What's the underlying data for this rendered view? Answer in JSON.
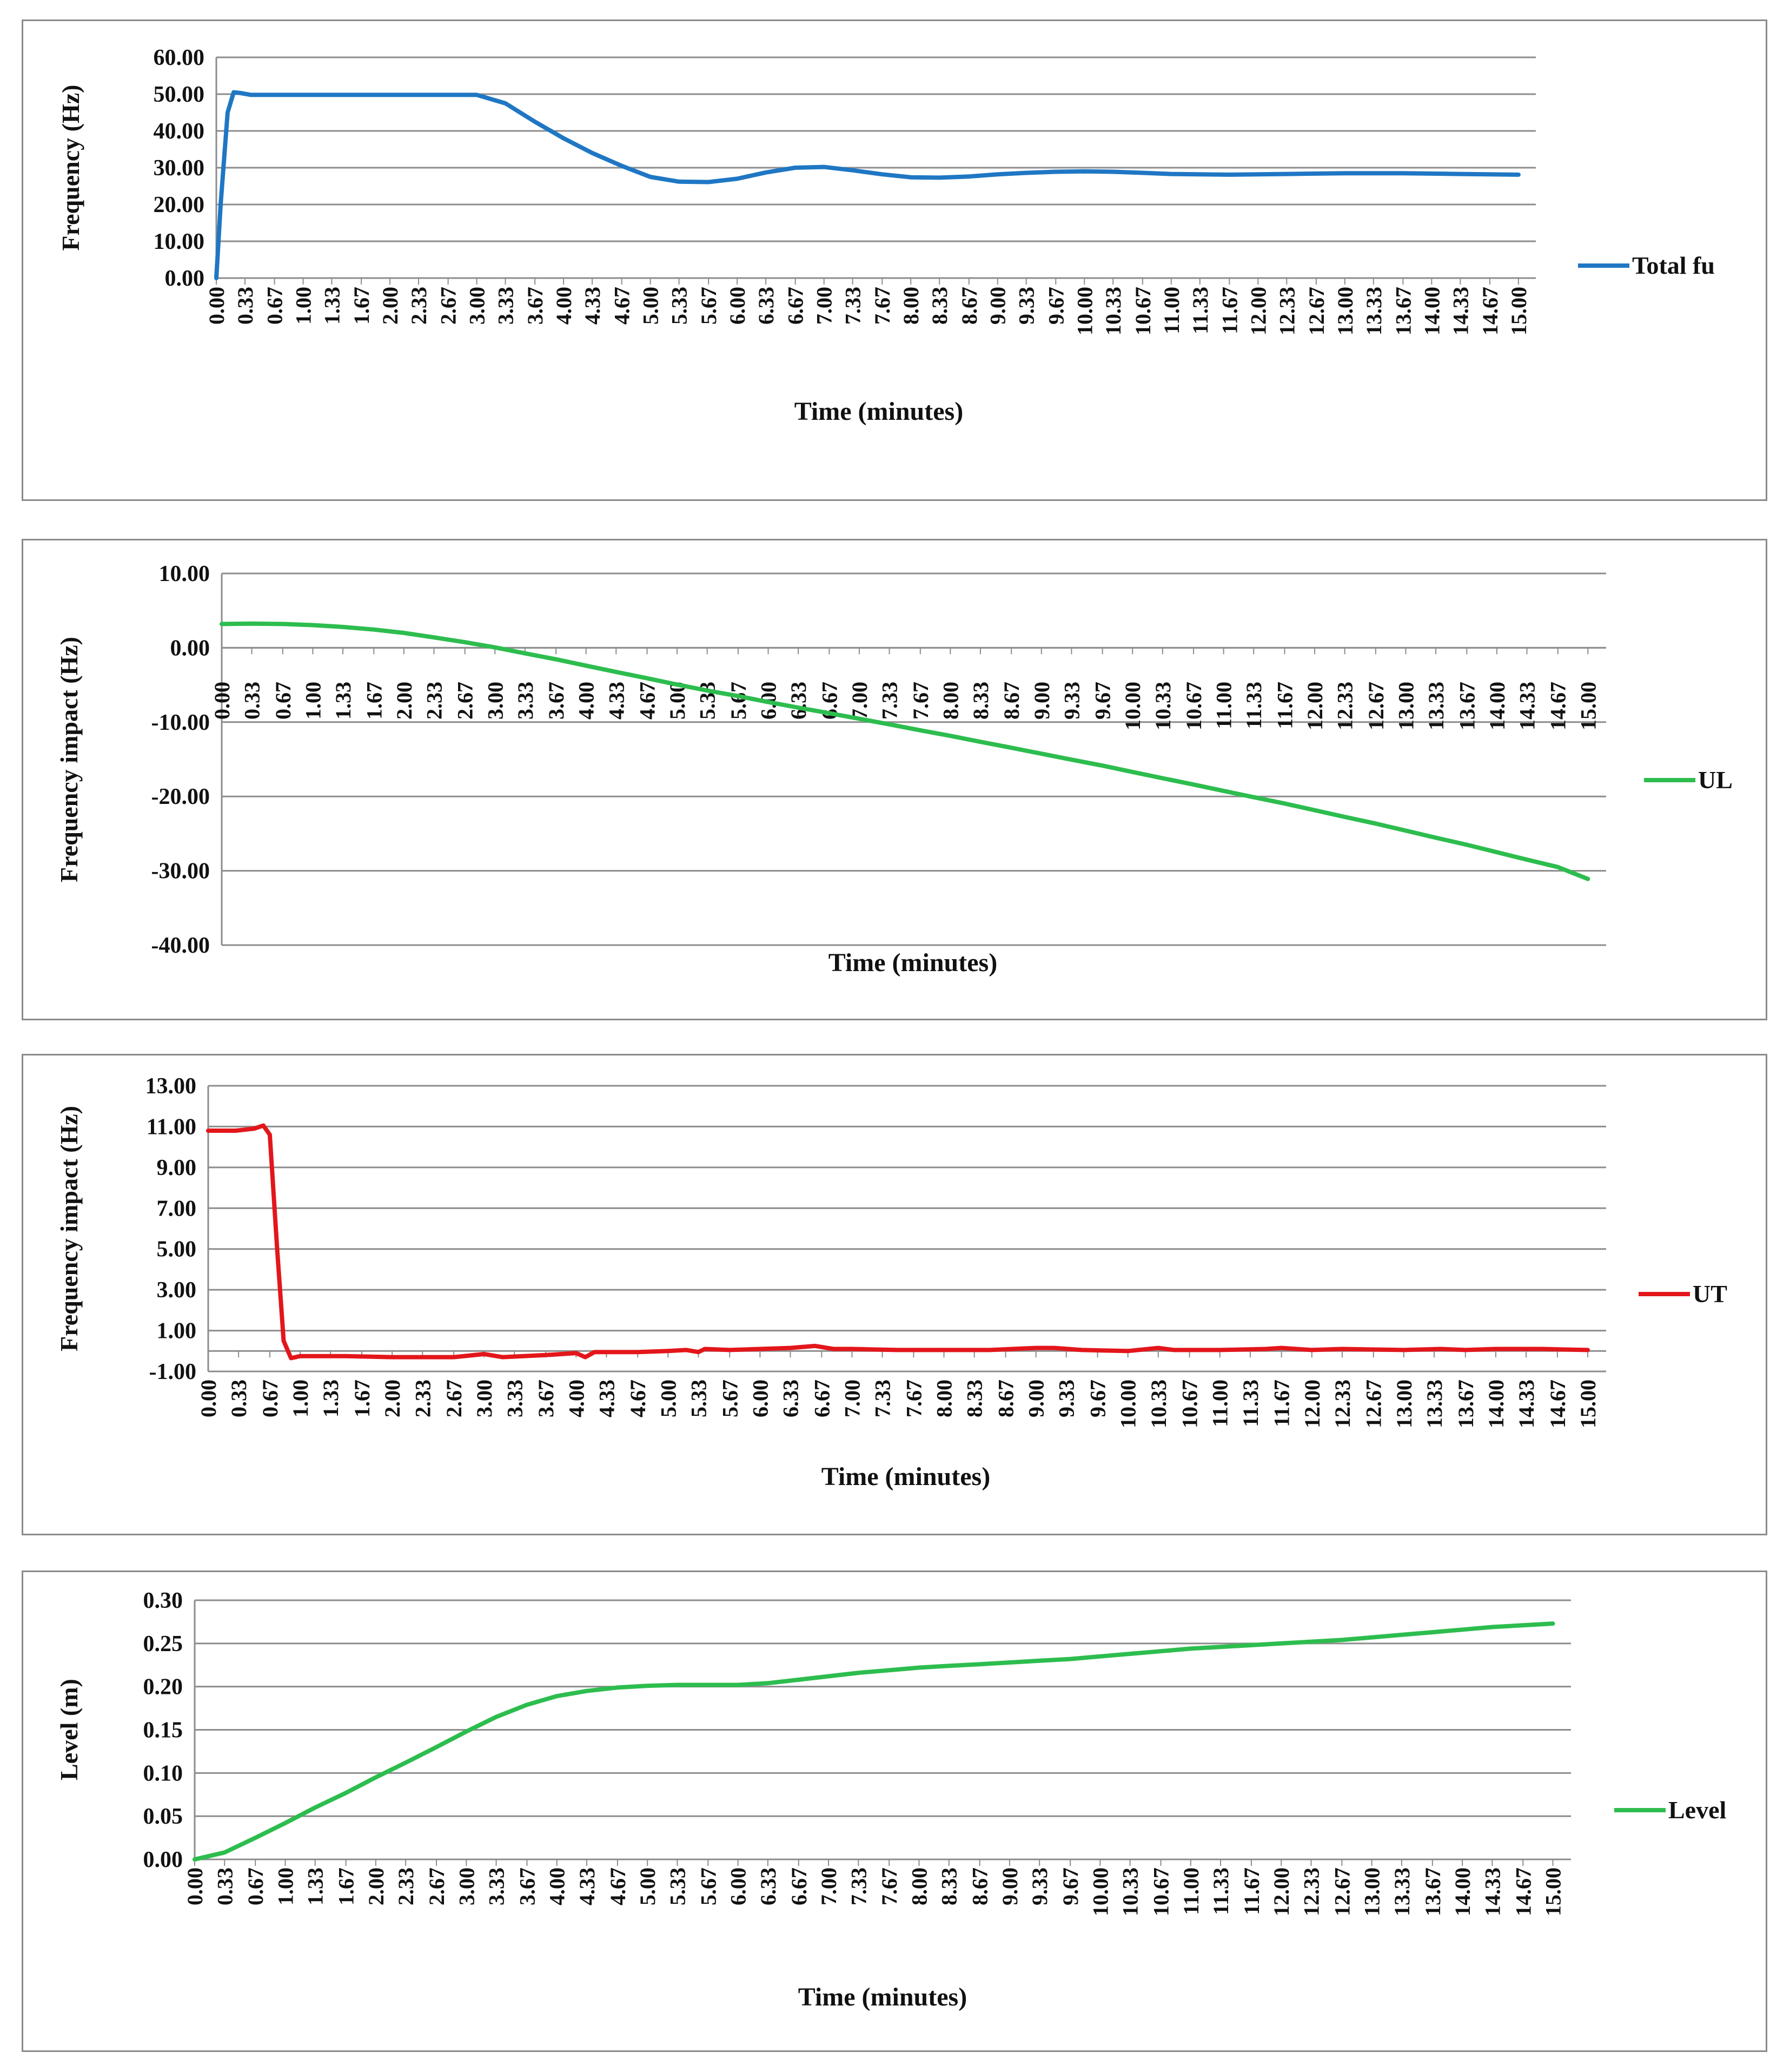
{
  "chart_data": [
    {
      "type": "line",
      "ylabel": "Frequency (Hz)",
      "xlabel": "Time (minutes)",
      "ylim": [
        0,
        60
      ],
      "yticks": [
        "0.00",
        "10.00",
        "20.00",
        "30.00",
        "40.00",
        "50.00",
        "60.00"
      ],
      "x_categories": [
        "0.00",
        "0.33",
        "0.67",
        "1.00",
        "1.33",
        "1.67",
        "2.00",
        "2.33",
        "2.67",
        "3.00",
        "3.33",
        "3.67",
        "4.00",
        "4.33",
        "4.67",
        "5.00",
        "5.33",
        "5.67",
        "6.00",
        "6.33",
        "6.67",
        "7.00",
        "7.33",
        "7.67",
        "8.00",
        "8.33",
        "8.67",
        "9.00",
        "9.33",
        "9.67",
        "10.00",
        "10.33",
        "10.67",
        "11.00",
        "11.33",
        "11.67",
        "12.00",
        "12.33",
        "12.67",
        "13.00",
        "13.33",
        "13.67",
        "14.00",
        "14.33",
        "14.67",
        "15.00"
      ],
      "series": [
        {
          "name": "Total fu",
          "color": "#1f77c4",
          "x": [
            0,
            0.05,
            0.13,
            0.2,
            0.28,
            0.4,
            1.0,
            2.0,
            2.8,
            3.0,
            3.33,
            3.67,
            4.0,
            4.33,
            4.67,
            5.0,
            5.33,
            5.67,
            6.0,
            6.33,
            6.67,
            7.0,
            7.33,
            7.67,
            8.0,
            8.33,
            8.67,
            9.0,
            9.33,
            9.67,
            10.0,
            10.33,
            10.67,
            11.0,
            11.33,
            11.67,
            12.0,
            12.33,
            12.67,
            13.0,
            13.33,
            13.67,
            14.0,
            14.33,
            14.67,
            15.0
          ],
          "y": [
            0,
            20,
            45,
            50.5,
            50.3,
            49.8,
            49.8,
            49.8,
            49.8,
            49.8,
            47.5,
            42.5,
            38,
            34,
            30.5,
            27.5,
            26.2,
            26.1,
            27,
            28.7,
            30,
            30.2,
            29.3,
            28.2,
            27.4,
            27.3,
            27.6,
            28.2,
            28.6,
            28.9,
            29,
            28.9,
            28.6,
            28.3,
            28.2,
            28.1,
            28.2,
            28.3,
            28.4,
            28.5,
            28.5,
            28.5,
            28.4,
            28.3,
            28.2,
            28.1
          ]
        }
      ]
    },
    {
      "type": "line",
      "ylabel": "Frequency impact (Hz)",
      "xlabel": "Time (minutes)",
      "ylim": [
        -40,
        10
      ],
      "yticks": [
        "-40.00",
        "-30.00",
        "-20.00",
        "-10.00",
        "0.00",
        "10.00"
      ],
      "x_categories": [
        "0.00",
        "0.33",
        "0.67",
        "1.00",
        "1.33",
        "1.67",
        "2.00",
        "2.33",
        "2.67",
        "3.00",
        "3.33",
        "3.67",
        "4.00",
        "4.33",
        "4.67",
        "5.00",
        "5.33",
        "5.67",
        "6.00",
        "6.33",
        "6.67",
        "7.00",
        "7.33",
        "7.67",
        "8.00",
        "8.33",
        "8.67",
        "9.00",
        "9.33",
        "9.67",
        "10.00",
        "10.33",
        "10.67",
        "11.00",
        "11.33",
        "11.67",
        "12.00",
        "12.33",
        "12.67",
        "13.00",
        "13.33",
        "13.67",
        "14.00",
        "14.33",
        "14.67",
        "15.00"
      ],
      "series": [
        {
          "name": "UL",
          "color": "#2dbd4e",
          "x": [
            0,
            0.33,
            0.67,
            1.0,
            1.33,
            1.67,
            2.0,
            2.33,
            2.67,
            3.0,
            3.33,
            3.67,
            4.0,
            4.33,
            4.67,
            5.0,
            5.33,
            5.67,
            6.0,
            6.33,
            6.67,
            7.0,
            7.33,
            7.67,
            8.0,
            8.33,
            8.67,
            9.0,
            9.33,
            9.67,
            10.0,
            10.33,
            10.67,
            11.0,
            11.33,
            11.67,
            12.0,
            12.33,
            12.67,
            13.0,
            13.33,
            13.67,
            14.0,
            14.33,
            14.67,
            15.0
          ],
          "y": [
            3.2,
            3.25,
            3.2,
            3.05,
            2.8,
            2.45,
            2.0,
            1.4,
            0.75,
            0.05,
            -0.75,
            -1.55,
            -2.4,
            -3.25,
            -4.1,
            -4.95,
            -5.75,
            -6.5,
            -7.3,
            -8.05,
            -8.8,
            -9.55,
            -10.3,
            -11.1,
            -11.85,
            -12.65,
            -13.45,
            -14.25,
            -15.05,
            -15.85,
            -16.7,
            -17.55,
            -18.4,
            -19.25,
            -20.1,
            -20.95,
            -21.85,
            -22.75,
            -23.65,
            -24.6,
            -25.55,
            -26.5,
            -27.5,
            -28.5,
            -29.5,
            -31.1
          ]
        }
      ]
    },
    {
      "type": "line",
      "ylabel": "Frequency impact (Hz)",
      "xlabel": "Time (minutes)",
      "ylim": [
        -1,
        13
      ],
      "yticks": [
        "-1.00",
        "1.00",
        "3.00",
        "5.00",
        "7.00",
        "9.00",
        "11.00",
        "13.00"
      ],
      "x_categories": [
        "0.00",
        "0.33",
        "0.67",
        "1.00",
        "1.33",
        "1.67",
        "2.00",
        "2.33",
        "2.67",
        "3.00",
        "3.33",
        "3.67",
        "4.00",
        "4.33",
        "4.67",
        "5.00",
        "5.33",
        "5.67",
        "6.00",
        "6.33",
        "6.67",
        "7.00",
        "7.33",
        "7.67",
        "8.00",
        "8.33",
        "8.67",
        "9.00",
        "9.33",
        "9.67",
        "10.00",
        "10.33",
        "10.67",
        "11.00",
        "11.33",
        "11.67",
        "12.00",
        "12.33",
        "12.67",
        "13.00",
        "13.33",
        "13.67",
        "14.00",
        "14.33",
        "14.67",
        "15.00"
      ],
      "series": [
        {
          "name": "UT",
          "color": "#e3161b",
          "x": [
            0,
            0.3,
            0.5,
            0.6,
            0.67,
            0.75,
            0.82,
            0.9,
            1.0,
            1.5,
            2.0,
            2.67,
            3.0,
            3.2,
            3.67,
            4.0,
            4.1,
            4.2,
            4.67,
            5.0,
            5.2,
            5.33,
            5.4,
            5.67,
            6.0,
            6.33,
            6.6,
            6.8,
            7.0,
            7.5,
            8.0,
            8.5,
            9.0,
            9.2,
            9.5,
            10.0,
            10.33,
            10.5,
            11.0,
            11.5,
            11.67,
            12.0,
            12.33,
            13.0,
            13.4,
            13.67,
            14.0,
            14.5,
            15.0
          ],
          "y": [
            10.8,
            10.8,
            10.9,
            11.05,
            10.6,
            5.0,
            0.5,
            -0.35,
            -0.25,
            -0.25,
            -0.3,
            -0.3,
            -0.15,
            -0.3,
            -0.2,
            -0.1,
            -0.3,
            -0.05,
            -0.05,
            0.0,
            0.05,
            -0.05,
            0.1,
            0.05,
            0.1,
            0.15,
            0.25,
            0.1,
            0.1,
            0.05,
            0.05,
            0.05,
            0.15,
            0.15,
            0.05,
            0.0,
            0.15,
            0.05,
            0.05,
            0.1,
            0.15,
            0.05,
            0.1,
            0.05,
            0.1,
            0.05,
            0.1,
            0.1,
            0.05
          ]
        }
      ]
    },
    {
      "type": "line",
      "ylabel": "Level (m)",
      "xlabel": "Time (minutes)",
      "ylim": [
        0,
        0.3
      ],
      "yticks": [
        "0.00",
        "0.05",
        "0.10",
        "0.15",
        "0.20",
        "0.25",
        "0.30"
      ],
      "x_categories": [
        "0.00",
        "0.33",
        "0.67",
        "1.00",
        "1.33",
        "1.67",
        "2.00",
        "2.33",
        "2.67",
        "3.00",
        "3.33",
        "3.67",
        "4.00",
        "4.33",
        "4.67",
        "5.00",
        "5.33",
        "5.67",
        "6.00",
        "6.33",
        "6.67",
        "7.00",
        "7.33",
        "7.67",
        "8.00",
        "8.33",
        "8.67",
        "9.00",
        "9.33",
        "9.67",
        "10.00",
        "10.33",
        "10.67",
        "11.00",
        "11.33",
        "11.67",
        "12.00",
        "12.33",
        "12.67",
        "13.00",
        "13.33",
        "13.67",
        "14.00",
        "14.33",
        "14.67",
        "15.00"
      ],
      "series": [
        {
          "name": "Level",
          "color": "#2dbd4e",
          "x": [
            0,
            0.33,
            0.67,
            1.0,
            1.33,
            1.67,
            2.0,
            2.33,
            2.67,
            3.0,
            3.33,
            3.67,
            4.0,
            4.33,
            4.67,
            5.0,
            5.33,
            5.67,
            6.0,
            6.33,
            6.67,
            7.0,
            7.33,
            7.67,
            8.0,
            8.33,
            8.67,
            9.0,
            9.33,
            9.67,
            10.0,
            10.33,
            10.67,
            11.0,
            11.33,
            11.67,
            12.0,
            12.33,
            12.67,
            13.0,
            13.33,
            13.67,
            14.0,
            14.33,
            14.67,
            15.0
          ],
          "y": [
            0.0,
            0.008,
            0.025,
            0.042,
            0.06,
            0.077,
            0.095,
            0.112,
            0.13,
            0.148,
            0.165,
            0.179,
            0.189,
            0.195,
            0.199,
            0.201,
            0.202,
            0.202,
            0.202,
            0.204,
            0.208,
            0.212,
            0.216,
            0.219,
            0.222,
            0.224,
            0.226,
            0.228,
            0.23,
            0.232,
            0.235,
            0.238,
            0.241,
            0.244,
            0.246,
            0.248,
            0.25,
            0.252,
            0.254,
            0.257,
            0.26,
            0.263,
            0.266,
            0.269,
            0.271,
            0.273
          ]
        }
      ]
    }
  ]
}
